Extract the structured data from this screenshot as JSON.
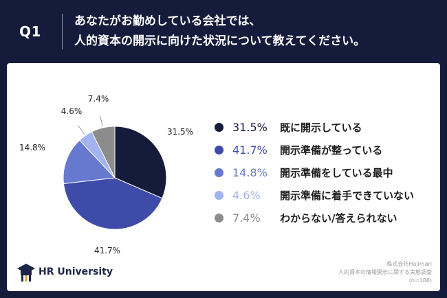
{
  "header": {
    "q_label": "Q1",
    "question_line1": "あなたがお勤めしている会社では、",
    "question_line2": "人的資本の開示に向けた状況について教えてください。"
  },
  "colors": {
    "background": "#151b3a",
    "series": [
      "#151b3a",
      "#3e4ba8",
      "#6778cf",
      "#a3b3ee",
      "#8c8c8c"
    ]
  },
  "chart_data": {
    "type": "pie",
    "legend_position": "right",
    "categories": [
      "既に開示している",
      "開示準備が整っている",
      "開示準備をしている最中",
      "開示準備に着手できていない",
      "わからない/答えられない"
    ],
    "values": [
      31.5,
      41.7,
      14.8,
      4.6,
      7.4
    ],
    "value_labels": [
      "31.5%",
      "41.7%",
      "14.8%",
      "4.6%",
      "7.4%"
    ],
    "colors": [
      "#151b3a",
      "#3e4ba8",
      "#6778cf",
      "#a3b3ee",
      "#8c8c8c"
    ]
  },
  "logo": {
    "text": "HR University",
    "icon": "graduation-cap-icon"
  },
  "source": {
    "line1": "株式会社Hajimari",
    "line2": "人的資本の情報開示に関する実態調査",
    "line3": "(n=108)"
  }
}
